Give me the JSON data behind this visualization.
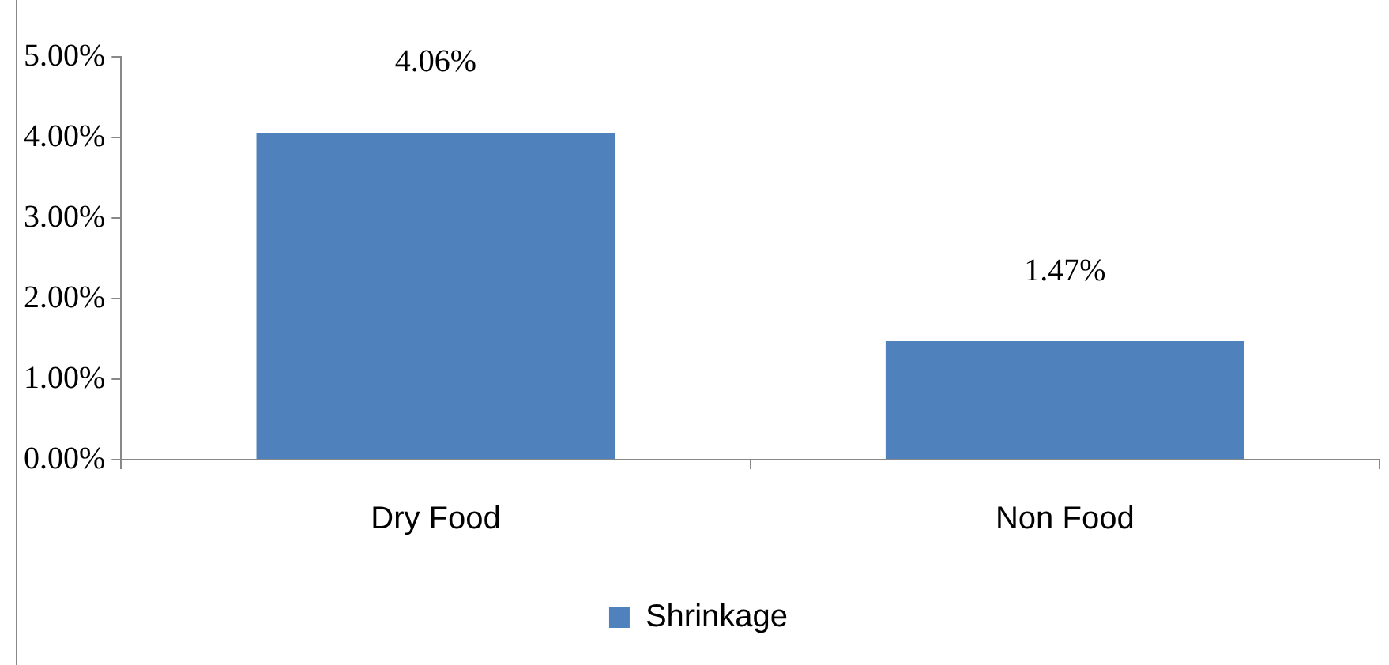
{
  "chart_data": {
    "type": "bar",
    "categories": [
      "Dry Food",
      "Non Food"
    ],
    "series": [
      {
        "name": "Shrinkage",
        "color": "#4f81bd",
        "values": [
          4.06,
          1.47
        ],
        "value_labels": [
          "4.06%",
          "1.47%"
        ]
      }
    ],
    "ylim": [
      0,
      5
    ],
    "yticks": [
      {
        "value": 0,
        "label": "0.00%"
      },
      {
        "value": 1,
        "label": "1.00%"
      },
      {
        "value": 2,
        "label": "2.00%"
      },
      {
        "value": 3,
        "label": "3.00%"
      },
      {
        "value": 4,
        "label": "4.00%"
      },
      {
        "value": 5,
        "label": "5.00%"
      }
    ],
    "grid": false,
    "legend": "bottom"
  }
}
